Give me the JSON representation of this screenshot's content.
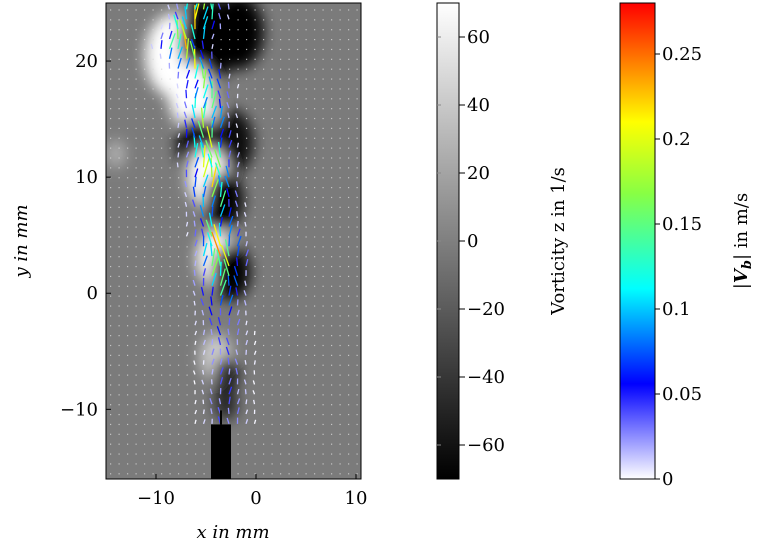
{
  "chart_data": [
    {
      "type": "heatmap",
      "title": "",
      "xlabel": "x in mm",
      "ylabel": "y in mm",
      "xlim": [
        -15,
        10.5
      ],
      "ylim": [
        -16,
        25
      ],
      "x_ticks": [
        -10,
        0,
        10
      ],
      "y_ticks": [
        -10,
        0,
        10,
        20
      ],
      "x_tick_labels": [
        "−10",
        "0",
        "10"
      ],
      "y_tick_labels": [
        "−10",
        "0",
        "10",
        "20"
      ],
      "background_field": "vorticity z",
      "vector_field": "|V_b|",
      "vortices": [
        {
          "x": -8.2,
          "y": 20.5,
          "w": 4.5,
          "sign": 1
        },
        {
          "x": -4.8,
          "y": 21.8,
          "w": 4.5,
          "sign": -1
        },
        {
          "x": -1.8,
          "y": 22.5,
          "w": 4.0,
          "sign": -1
        },
        {
          "x": -6.5,
          "y": 17.0,
          "w": 3.5,
          "sign": 1
        },
        {
          "x": -5.5,
          "y": 15.2,
          "w": 3.0,
          "sign": 0.6
        },
        {
          "x": -6.0,
          "y": 12.8,
          "w": 3.0,
          "sign": -1
        },
        {
          "x": -2.5,
          "y": 13.0,
          "w": 3.5,
          "sign": -0.9
        },
        {
          "x": -4.8,
          "y": 10.0,
          "w": 3.2,
          "sign": 1
        },
        {
          "x": -3.2,
          "y": 8.0,
          "w": 3.0,
          "sign": -1
        },
        {
          "x": -4.0,
          "y": 3.0,
          "w": 3.0,
          "sign": 1
        },
        {
          "x": -2.5,
          "y": 1.8,
          "w": 3.0,
          "sign": -1
        },
        {
          "x": -4.0,
          "y": -5.5,
          "w": 2.5,
          "sign": 0.6
        },
        {
          "x": -3.0,
          "y": -7.0,
          "w": 2.0,
          "sign": -0.8
        },
        {
          "x": -3.0,
          "y": -9.5,
          "w": 1.8,
          "sign": -0.7
        },
        {
          "x": -14.0,
          "y": 12.0,
          "w": 1.5,
          "sign": 0.4
        }
      ],
      "jet_core": [
        {
          "y": 24,
          "x": -5.5,
          "v": 0.2
        },
        {
          "y": 21,
          "x": -7.5,
          "v": 0.22
        },
        {
          "y": 18,
          "x": -5.0,
          "v": 0.15
        },
        {
          "y": 14,
          "x": -5.0,
          "v": 0.16
        },
        {
          "y": 10,
          "x": -4.5,
          "v": 0.22
        },
        {
          "y": 6,
          "x": -4.0,
          "v": 0.1
        },
        {
          "y": 3,
          "x": -3.5,
          "v": 0.24
        },
        {
          "y": -2,
          "x": -3.5,
          "v": 0.06
        },
        {
          "y": -6,
          "x": -3.0,
          "v": 0.04
        }
      ],
      "nozzle": {
        "x_min": -4.5,
        "x_max": -2.5,
        "y_top": -11.3,
        "label": ""
      }
    },
    {
      "type": "heatmap",
      "role": "colorbar",
      "ylabel": "Vorticity z in 1/s",
      "ylim": [
        -70,
        70
      ],
      "ticks": [
        -60,
        -40,
        -20,
        0,
        20,
        40,
        60
      ],
      "tick_labels": [
        "−60",
        "−40",
        "−20",
        "0",
        "20",
        "40",
        "60"
      ],
      "colors": [
        "#000000",
        "#ffffff"
      ]
    },
    {
      "type": "heatmap",
      "role": "colorbar",
      "ylabel": "|V_b| in m/s",
      "ylabel_parts": {
        "bar": "|",
        "symbol": "V",
        "sub": "b",
        "unit": "| in m/s"
      },
      "ylim": [
        0,
        0.28
      ],
      "ticks": [
        0,
        0.05,
        0.1,
        0.15,
        0.2,
        0.25
      ],
      "tick_labels": [
        "0",
        "0.05",
        "0.1",
        "0.15",
        "0.2",
        "0.25"
      ],
      "colormap": [
        "#ffffff",
        "#0000ff",
        "#00ffff",
        "#ffff00",
        "#ff0000"
      ]
    }
  ]
}
